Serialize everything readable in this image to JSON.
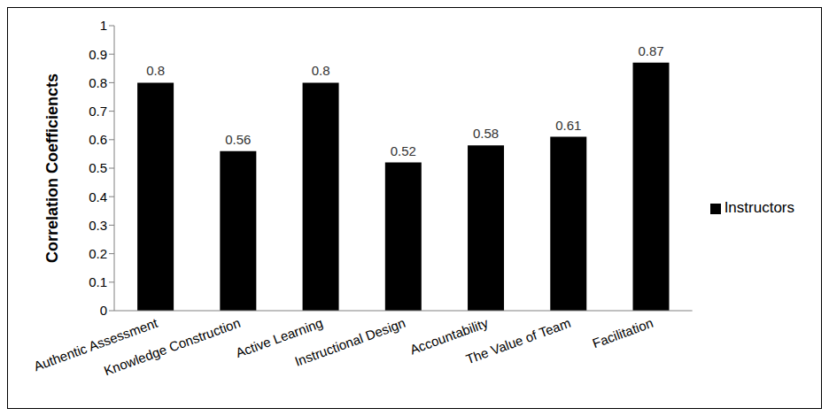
{
  "chart_data": {
    "type": "bar",
    "y_label": "Correlation Coefficiencts",
    "categories": [
      "Authentic  Assessment",
      "Knowledge Construction",
      "Active Learning",
      "Instructional Design",
      "Accountability",
      "The Value of Team",
      "Facilitation"
    ],
    "series": [
      {
        "name": "Instructors",
        "color": "#000000",
        "values": [
          0.8,
          0.56,
          0.8,
          0.52,
          0.58,
          0.61,
          0.87
        ]
      }
    ],
    "ylim": [
      0,
      1
    ],
    "yticks": [
      0,
      0.1,
      0.2,
      0.3,
      0.4,
      0.5,
      0.6,
      0.7,
      0.8,
      0.9,
      1
    ],
    "grid": false,
    "legend": "right",
    "data_labels": true
  }
}
